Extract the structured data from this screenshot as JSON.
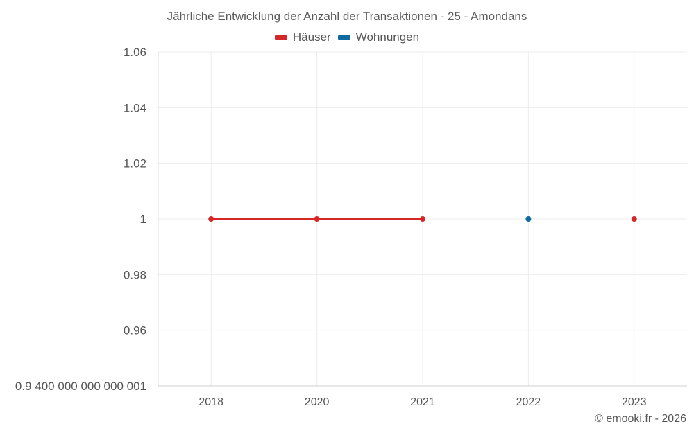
{
  "chart_data": {
    "type": "line",
    "title": "Jährliche Entwicklung der Anzahl der Transaktionen - 25 - Amondans",
    "categories": [
      "2018",
      "2020",
      "2021",
      "2022",
      "2023"
    ],
    "yticks": [
      "1.06",
      "1.04",
      "1.02",
      "1",
      "0.98",
      "0.96",
      "0.9 400 000 000 000 001"
    ],
    "ytick_values": [
      1.06,
      1.04,
      1.02,
      1.0,
      0.98,
      0.96,
      0.94
    ],
    "ylim": [
      0.94,
      1.06
    ],
    "grid": true,
    "legend_position": "top-center",
    "series": [
      {
        "name": "Häuser",
        "color": "#d62728",
        "values": [
          1,
          1,
          1,
          null,
          1
        ]
      },
      {
        "name": "Wohnungen",
        "color": "#0f6aa0",
        "values": [
          null,
          null,
          null,
          1,
          null
        ]
      }
    ],
    "credit": "© emooki.fr - 2026"
  }
}
